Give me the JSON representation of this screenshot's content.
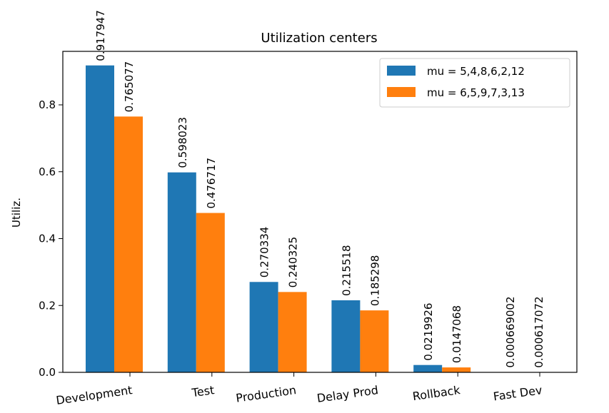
{
  "chart_data": {
    "type": "bar",
    "title": "Utilization centers",
    "xlabel": "",
    "ylabel": "Utiliz.",
    "categories": [
      "Development",
      "Test",
      "Production",
      "Delay Prod",
      "Rollback",
      "Fast Dev"
    ],
    "series": [
      {
        "name": "mu = 5,4,8,6,2,12",
        "color": "#1f77b4",
        "values": [
          0.917947,
          0.598023,
          0.270334,
          0.215518,
          0.0219926,
          0.000669002
        ],
        "labels": [
          "0.917947",
          "0.598023",
          "0.270334",
          "0.215518",
          "0.0219926",
          "0.000669002"
        ]
      },
      {
        "name": "mu = 6,5,9,7,3,13",
        "color": "#ff7f0e",
        "values": [
          0.765077,
          0.476717,
          0.240325,
          0.185298,
          0.0147068,
          0.000617072
        ],
        "labels": [
          "0.765077",
          "0.476717",
          "0.240325",
          "0.185298",
          "0.0147068",
          "0.000617072"
        ]
      }
    ],
    "ylim": [
      0,
      0.96
    ],
    "yticks": [
      "0.0",
      "0.2",
      "0.4",
      "0.6",
      "0.8"
    ],
    "grid": false,
    "legend_position": "upper right"
  }
}
